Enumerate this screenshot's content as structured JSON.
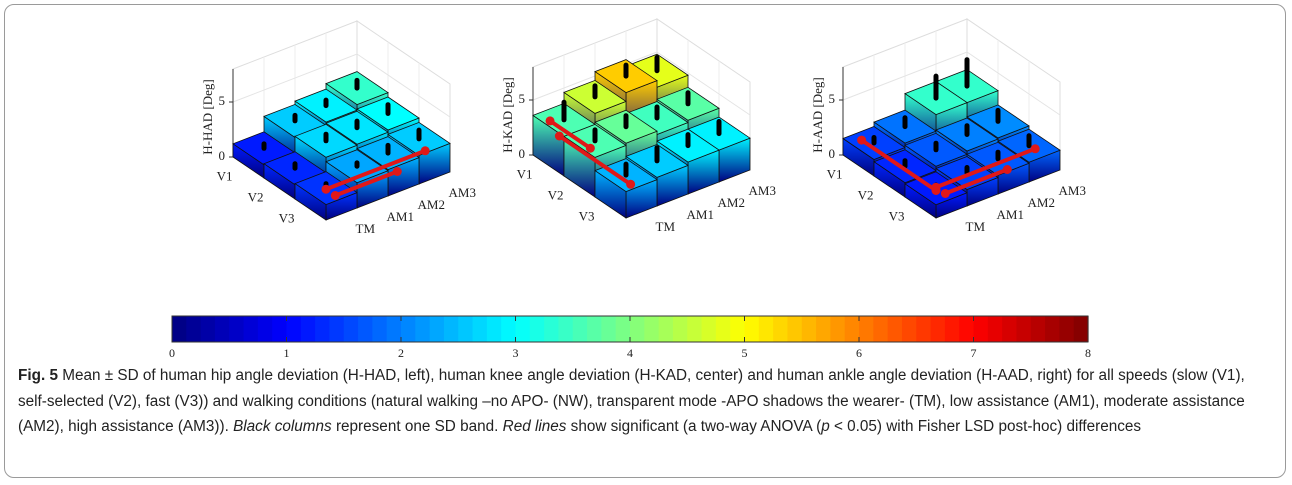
{
  "chart_data": [
    {
      "type": "bar3d",
      "ylabel": "H-HAD [Deg]",
      "categories": [
        "TM",
        "AM1",
        "AM2",
        "AM3"
      ],
      "series": [
        {
          "name": "V1",
          "values": [
            1.2,
            2.6,
            2.9,
            3.4
          ],
          "errors": [
            0.4,
            0.5,
            0.5,
            0.7
          ]
        },
        {
          "name": "V2",
          "values": [
            1.3,
            2.7,
            2.8,
            3.0
          ],
          "errors": [
            0.4,
            0.6,
            0.6,
            0.8
          ]
        },
        {
          "name": "V3",
          "values": [
            1.4,
            2.3,
            2.4,
            2.6
          ],
          "errors": [
            0.4,
            0.3,
            0.7,
            0.8
          ]
        }
      ],
      "zlim": [
        0,
        8
      ],
      "zticks": [
        0,
        5
      ],
      "colormap": "jet"
    },
    {
      "type": "bar3d",
      "ylabel": "H-KAD [Deg]",
      "categories": [
        "TM",
        "AM1",
        "AM2",
        "AM3"
      ],
      "series": [
        {
          "name": "V1",
          "values": [
            3.6,
            4.6,
            5.4,
            4.8
          ],
          "errors": [
            1.6,
            1.0,
            1.0,
            1.2
          ]
        },
        {
          "name": "V2",
          "values": [
            3.6,
            3.8,
            3.5,
            3.7
          ],
          "errors": [
            1.0,
            1.0,
            1.0,
            1.0
          ]
        },
        {
          "name": "V3",
          "values": [
            2.4,
            2.6,
            2.9,
            2.9
          ],
          "errors": [
            1.0,
            1.2,
            1.0,
            1.1
          ]
        }
      ],
      "zlim": [
        0,
        8
      ],
      "zticks": [
        0,
        5
      ],
      "colormap": "jet"
    },
    {
      "type": "bar3d",
      "ylabel": "H-AAD [Deg]",
      "categories": [
        "TM",
        "AM1",
        "AM2",
        "AM3"
      ],
      "series": [
        {
          "name": "V1",
          "values": [
            1.5,
            1.9,
            3.4,
            3.4
          ],
          "errors": [
            0.5,
            0.8,
            2.0,
            2.4
          ]
        },
        {
          "name": "V2",
          "values": [
            1.3,
            1.7,
            2.0,
            2.1
          ],
          "errors": [
            0.5,
            0.6,
            0.8,
            1.0
          ]
        },
        {
          "name": "V3",
          "values": [
            1.2,
            1.5,
            1.7,
            1.8
          ],
          "errors": [
            0.3,
            0.5,
            0.6,
            0.9
          ]
        }
      ],
      "zlim": [
        0,
        8
      ],
      "zticks": [
        0,
        5
      ],
      "colormap": "jet"
    },
    {
      "type": "colorbar",
      "clim": [
        0,
        8
      ],
      "ticks": [
        0,
        1,
        2,
        3,
        4,
        5,
        6,
        7,
        8
      ],
      "colormap": "jet"
    }
  ],
  "caption": {
    "label": "Fig. 5",
    "text1": " Mean ± SD of human hip angle deviation (H-HAD, left), human knee angle deviation (H-KAD, center) and human ankle angle deviation (H-AAD, right) for all speeds (slow (V1), self-selected (V2), fast (V3)) and walking conditions (natural walking –no APO- (NW), transparent mode -APO shadows the wearer- (TM), low assistance (AM1), moderate assistance (AM2), high assistance (AM3)). ",
    "italic1": "Black columns",
    "text2": " represent one SD band. ",
    "italic2": "Red lines",
    "text3": " show significant (a two-way ANOVA (",
    "italic3": "p",
    "text4": " < 0.05) with Fisher LSD post-hoc) differences"
  }
}
